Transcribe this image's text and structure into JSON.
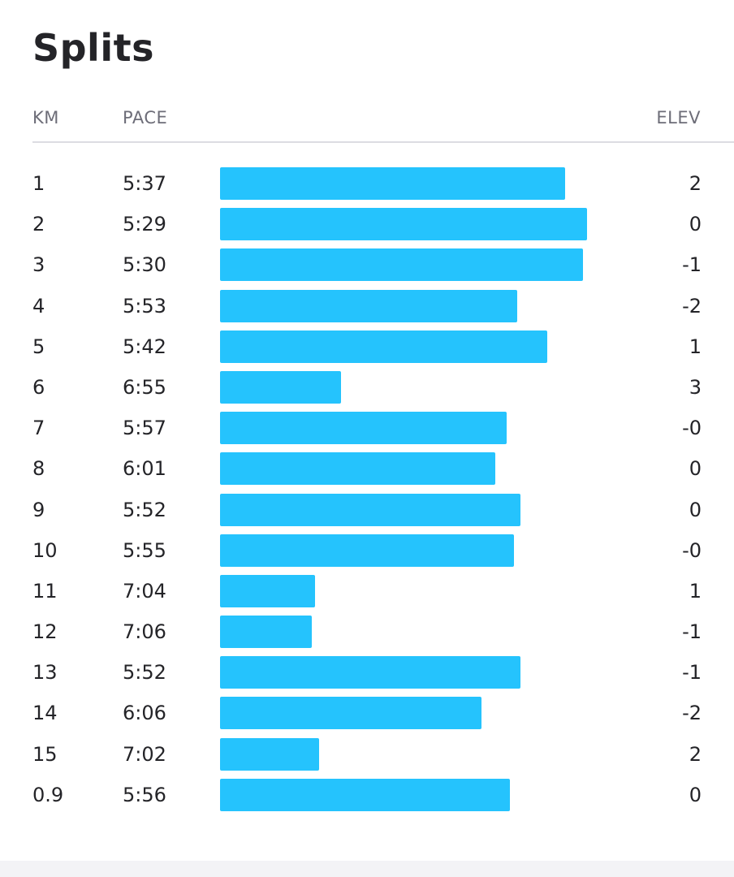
{
  "title": "Splits",
  "header": {
    "km": "KM",
    "pace": "PACE",
    "elev": "ELEV"
  },
  "colors": {
    "bar": "#25c3fd",
    "text": "#242428",
    "header_text": "#6d6d78"
  },
  "splits": [
    {
      "km": "1",
      "pace": "5:37",
      "elev": "2",
      "bar_fill": 0.941
    },
    {
      "km": "2",
      "pace": "5:29",
      "elev": "0",
      "bar_fill": 1.0
    },
    {
      "km": "3",
      "pace": "5:30",
      "elev": "-1",
      "bar_fill": 0.988
    },
    {
      "km": "4",
      "pace": "5:53",
      "elev": "-2",
      "bar_fill": 0.81
    },
    {
      "km": "5",
      "pace": "5:42",
      "elev": "1",
      "bar_fill": 0.892
    },
    {
      "km": "6",
      "pace": "6:55",
      "elev": "3",
      "bar_fill": 0.33
    },
    {
      "km": "7",
      "pace": "5:57",
      "elev": "-0",
      "bar_fill": 0.781
    },
    {
      "km": "8",
      "pace": "6:01",
      "elev": "0",
      "bar_fill": 0.75
    },
    {
      "km": "9",
      "pace": "5:52",
      "elev": "0",
      "bar_fill": 0.819
    },
    {
      "km": "10",
      "pace": "5:55",
      "elev": "-0",
      "bar_fill": 0.8
    },
    {
      "km": "11",
      "pace": "7:04",
      "elev": "1",
      "bar_fill": 0.259
    },
    {
      "km": "12",
      "pace": "7:06",
      "elev": "-1",
      "bar_fill": 0.25
    },
    {
      "km": "13",
      "pace": "5:52",
      "elev": "-1",
      "bar_fill": 0.819
    },
    {
      "km": "14",
      "pace": "6:06",
      "elev": "-2",
      "bar_fill": 0.712
    },
    {
      "km": "15",
      "pace": "7:02",
      "elev": "2",
      "bar_fill": 0.27
    },
    {
      "km": "0.9",
      "pace": "5:56",
      "elev": "0",
      "bar_fill": 0.79
    }
  ]
}
